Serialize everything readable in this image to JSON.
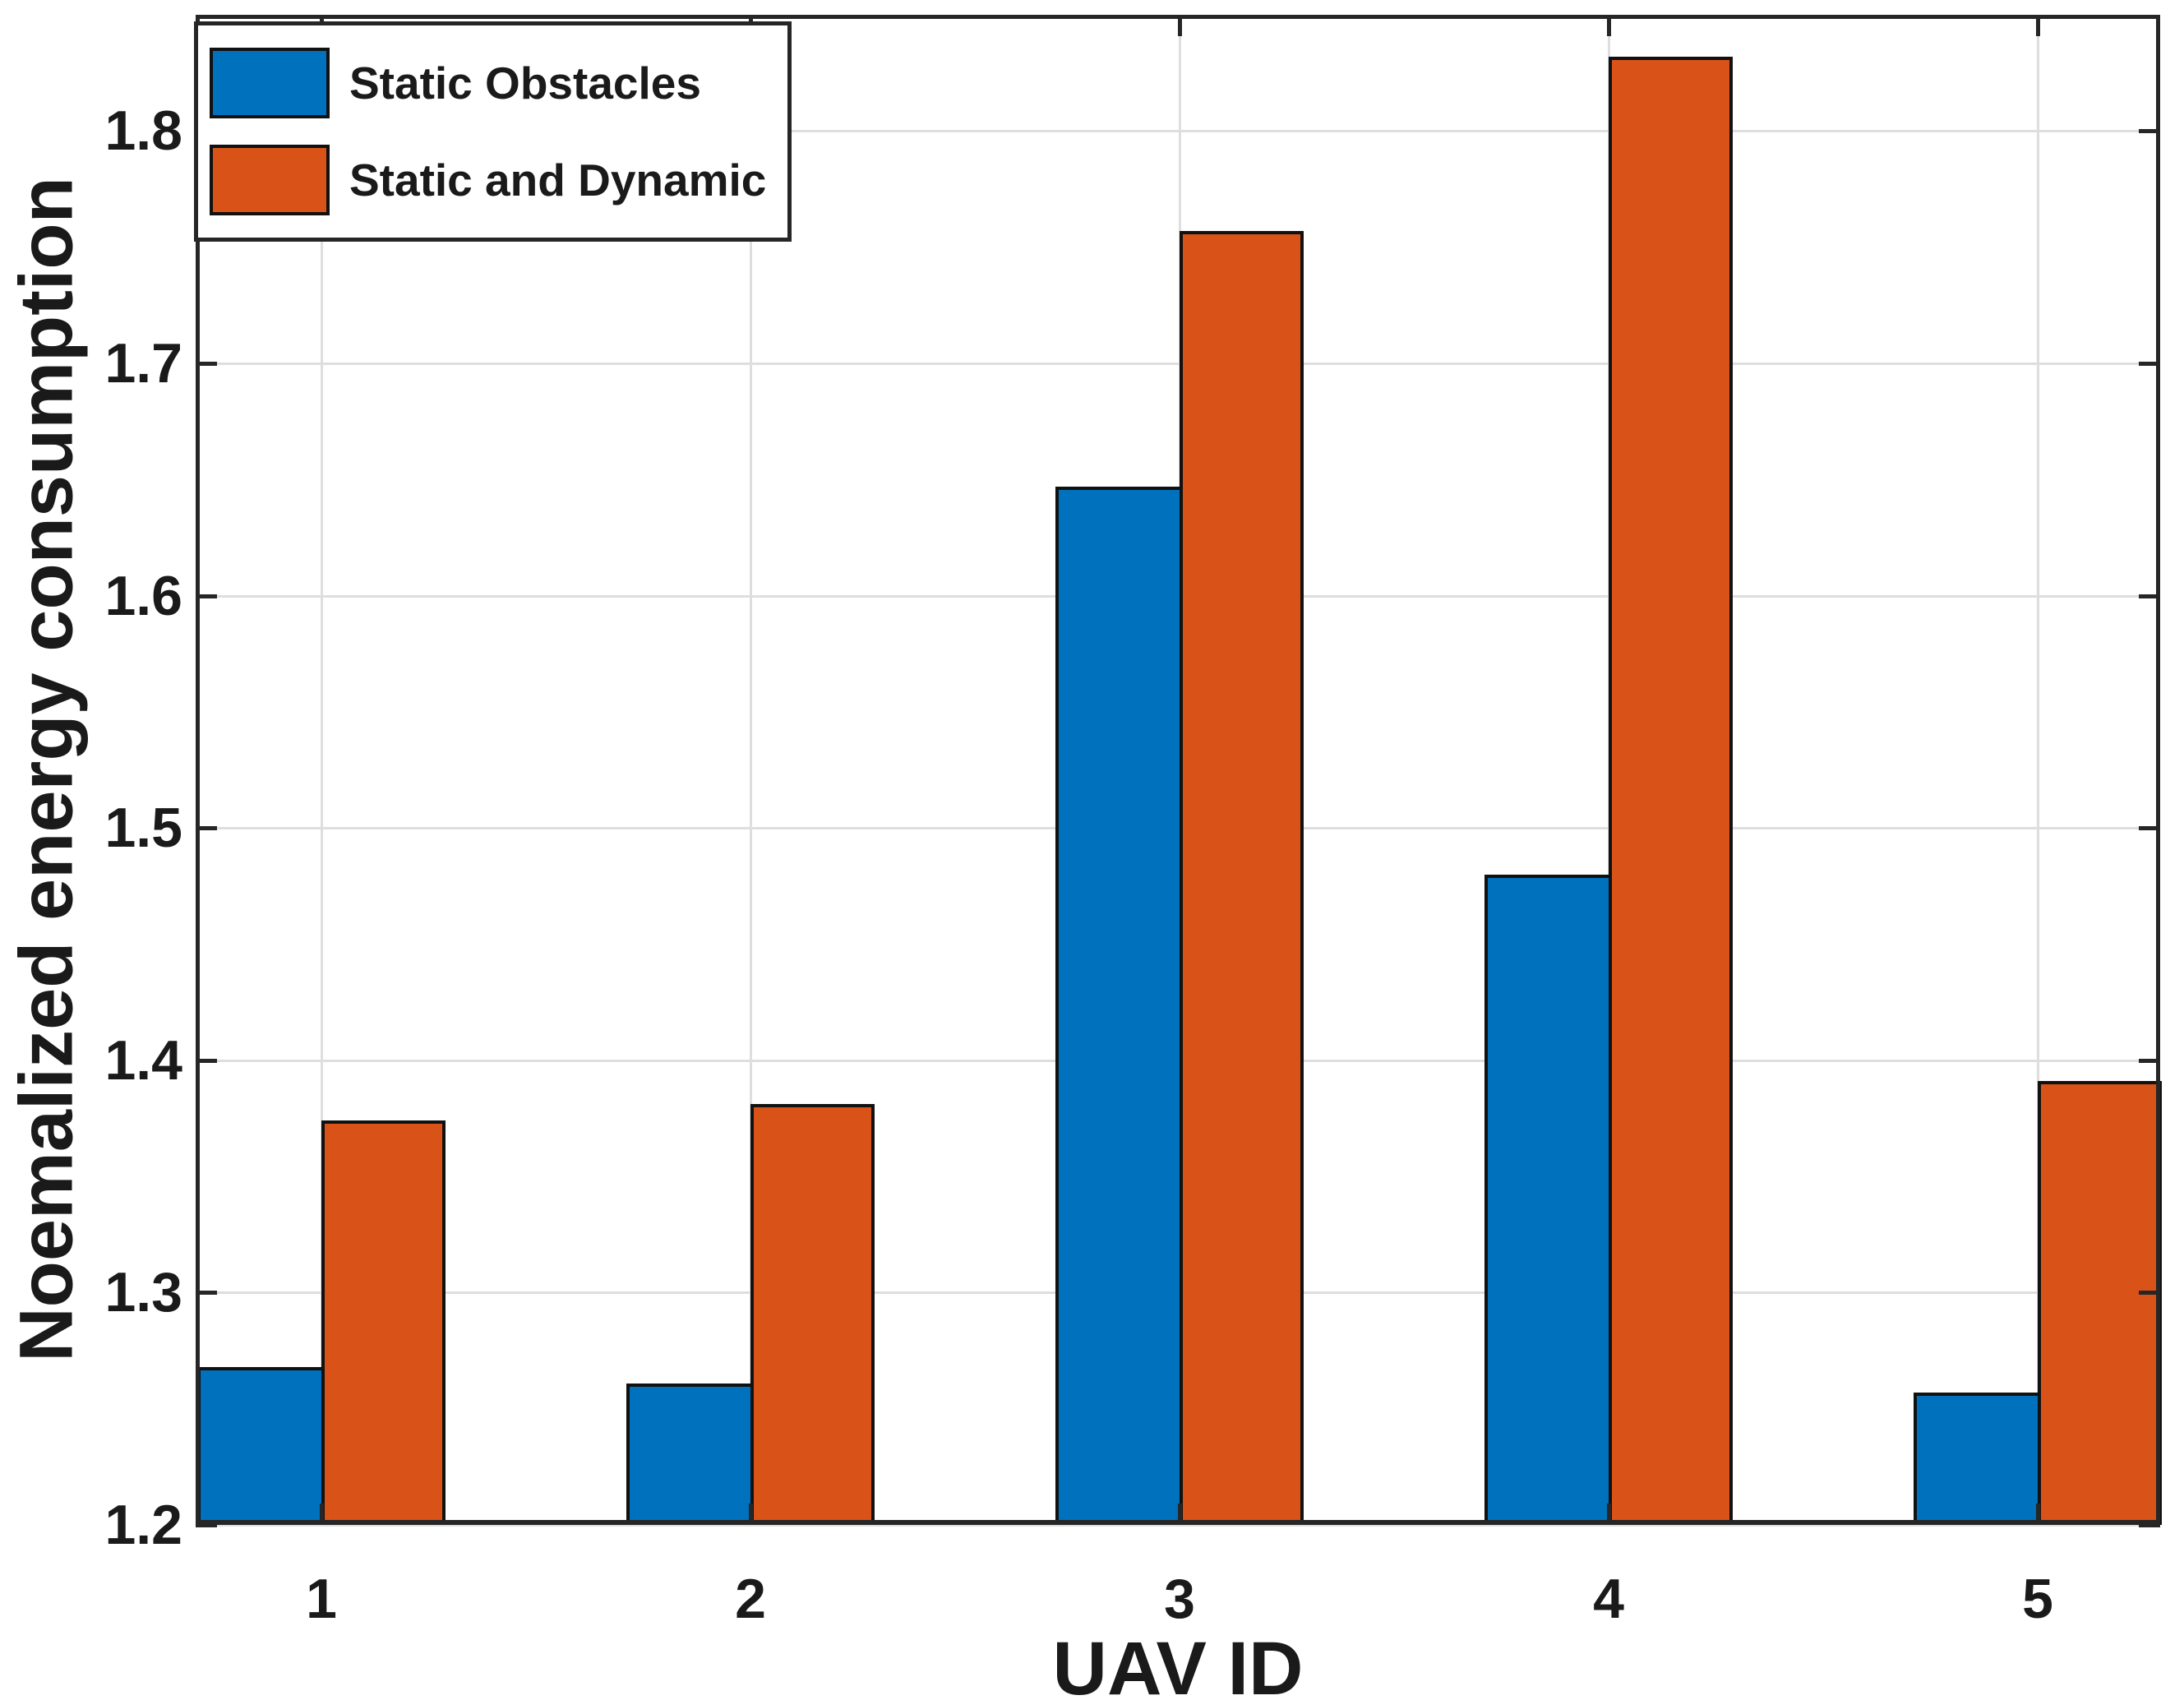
{
  "axes": {
    "xlabel": "UAV ID",
    "ylabel": "Noemalized energy consumption",
    "yticklabels": [
      "1.2",
      "1.3",
      "1.4",
      "1.5",
      "1.6",
      "1.7",
      "1.8"
    ],
    "xticklabels": [
      "1",
      "2",
      "3",
      "4",
      "5"
    ]
  },
  "legend": {
    "items": [
      {
        "label": "Static Obstacles",
        "color": "#0072BD"
      },
      {
        "label": "Static and Dynamic",
        "color": "#D95319"
      }
    ]
  },
  "colors": {
    "series_blue": "#0072BD",
    "series_orange": "#D95319",
    "grid": "#dedede",
    "axis": "#262626",
    "bar_edge": "#111111",
    "background": "#ffffff",
    "text": "#1a1a1a"
  },
  "chart_data": {
    "type": "bar",
    "title": "",
    "xlabel": "UAV ID",
    "ylabel": "Noemalized energy consumption",
    "categories": [
      "1",
      "2",
      "3",
      "4",
      "5"
    ],
    "series": [
      {
        "name": "Static Obstacles",
        "color": "#0072BD",
        "values": [
          1.268,
          1.261,
          1.647,
          1.48,
          1.257
        ]
      },
      {
        "name": "Static and Dynamic",
        "color": "#D95319",
        "values": [
          1.374,
          1.381,
          1.757,
          1.832,
          1.391
        ]
      }
    ],
    "ylim": [
      1.2,
      1.85
    ],
    "ytick_values": [
      1.2,
      1.3,
      1.4,
      1.5,
      1.6,
      1.7,
      1.8
    ],
    "grid": true,
    "grid_vertical_at_categories": true,
    "legend_position": "top-left",
    "bar_layout": "grouped-touching"
  }
}
